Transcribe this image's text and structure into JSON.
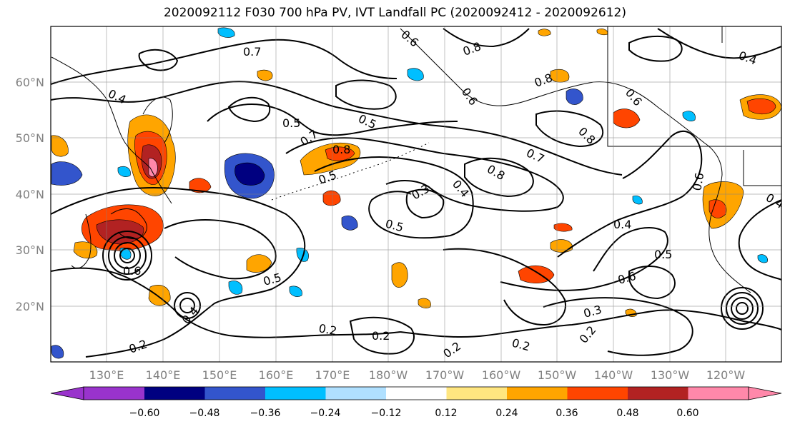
{
  "title": "2020092112 F030 700 hPa PV, IVT Landfall PC (2020092412 - 2020092612)",
  "lat_labels": [
    "60°N",
    "50°N",
    "40°N",
    "30°N",
    "20°N"
  ],
  "lon_labels": [
    "130°E",
    "140°E",
    "150°E",
    "160°E",
    "170°E",
    "180°W",
    "170°W",
    "160°W",
    "150°W",
    "140°W",
    "130°W",
    "120°W"
  ],
  "contour_labels": [
    "0.7",
    "0.4",
    "0.5",
    "0.7",
    "0.8",
    "0.5",
    "0.5",
    "0.3",
    "0.4",
    "0.5",
    "0.8",
    "0.7",
    "0.8",
    "0.6",
    "0.4",
    "0.6",
    "0.5",
    "0.6",
    "0.5",
    "0.3",
    "0.2",
    "0.2",
    "0.2",
    "0.2",
    "0.2",
    "0.2",
    "0.4",
    "0.6",
    "0.4",
    "0.6",
    "0.4",
    "0.8",
    "0.6",
    "0.8"
  ],
  "colorbar": {
    "colors": [
      "#9933cc",
      "#000080",
      "#3355cc",
      "#00bfff",
      "#b0e0ff",
      "#ffffff",
      "#ffe680",
      "#ffa500",
      "#ff4500",
      "#b22222",
      "#ff88aa"
    ],
    "tick_labels": [
      "−0.60",
      "−0.48",
      "−0.36",
      "−0.24",
      "−0.12",
      "0.12",
      "0.24",
      "0.36",
      "0.48",
      "0.60"
    ]
  }
}
